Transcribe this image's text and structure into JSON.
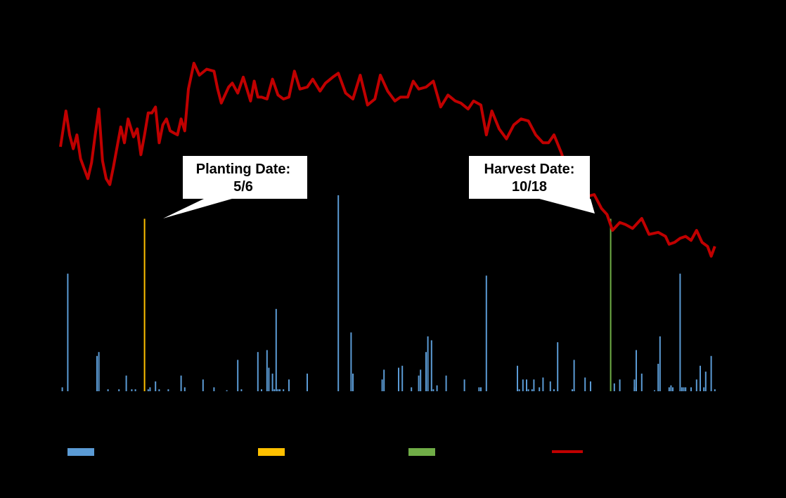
{
  "chart_data": {
    "type": "bar",
    "legend_placement": "bottom",
    "background_color": "#000000",
    "grid": false,
    "x_range": [
      0,
      360
    ],
    "y_range_precip": [
      0,
      100
    ],
    "y_range_temp": [
      0,
      100
    ],
    "series": [
      {
        "role": "precipitation",
        "chart_type": "bar",
        "color": "#5b9bd5",
        "x": [
          1,
          4,
          20,
          21,
          26,
          32,
          36,
          39,
          41,
          48,
          49,
          52,
          54,
          59,
          66,
          68,
          78,
          84,
          91,
          97,
          99,
          108,
          110,
          113,
          114,
          116,
          117,
          118,
          119,
          120,
          122,
          125,
          135,
          152,
          159,
          160,
          176,
          177,
          185,
          187,
          192,
          196,
          197,
          200,
          201,
          203,
          204,
          206,
          211,
          221,
          229,
          230,
          233,
          250,
          251,
          253,
          255,
          256,
          258,
          259,
          262,
          264,
          268,
          270,
          272,
          280,
          281,
          287,
          290,
          303,
          306,
          314,
          314,
          315,
          318,
          325,
          327,
          328,
          333,
          334,
          335,
          339,
          340,
          341,
          342,
          345,
          348,
          350,
          352,
          353,
          356,
          358
        ],
        "values": [
          2,
          60,
          18,
          20,
          1,
          1,
          8,
          1,
          1,
          1,
          2,
          5,
          1,
          1,
          8,
          2,
          6,
          2,
          0.5,
          16,
          1,
          20,
          1,
          21,
          12,
          9,
          1,
          42,
          1,
          1,
          1,
          6,
          9,
          100,
          30,
          9,
          6,
          11,
          12,
          13,
          2,
          8,
          11,
          20,
          28,
          26,
          1,
          3,
          8,
          6,
          2,
          2,
          59,
          13,
          1,
          6,
          6,
          1,
          1,
          6,
          2,
          7,
          5,
          1,
          25,
          1,
          16,
          7,
          5,
          4,
          6,
          2,
          6,
          21,
          9,
          0.5,
          14,
          28,
          2,
          3,
          2,
          60,
          2,
          2,
          2,
          2,
          6,
          13,
          2,
          10,
          18,
          1
        ]
      },
      {
        "role": "planting_date",
        "chart_type": "bar",
        "color": "#ffc000",
        "x": [
          46
        ],
        "values": [
          88
        ]
      },
      {
        "role": "harvest_date",
        "chart_type": "bar",
        "color": "#70ad47",
        "x": [
          301
        ],
        "values": [
          88
        ]
      },
      {
        "role": "temperature",
        "chart_type": "line",
        "color": "#c00000",
        "x": [
          0,
          3,
          5,
          7,
          9,
          11,
          13,
          15,
          17,
          19,
          21,
          23,
          25,
          27,
          29,
          31,
          33,
          35,
          37,
          40,
          42,
          44,
          46,
          48,
          50,
          52,
          54,
          56,
          58,
          60,
          62,
          64,
          66,
          68,
          70,
          73,
          76,
          80,
          84,
          86,
          88,
          92,
          94,
          97,
          100,
          104,
          106,
          108,
          110,
          113,
          116,
          119,
          122,
          125,
          128,
          131,
          135,
          138,
          142,
          145,
          149,
          152,
          156,
          160,
          164,
          168,
          172,
          175,
          179,
          183,
          186,
          190,
          193,
          196,
          200,
          204,
          208,
          212,
          216,
          219,
          223,
          226,
          230,
          233,
          236,
          240,
          244,
          248,
          252,
          256,
          260,
          264,
          267,
          270,
          274,
          278,
          281,
          284,
          288,
          292,
          296,
          299,
          302,
          306,
          309,
          313,
          318,
          322,
          327,
          331,
          333,
          336,
          339,
          342,
          345,
          348,
          351,
          354,
          356,
          358
        ],
        "values": [
          78,
          96,
          84,
          77,
          84,
          72,
          67,
          62,
          70,
          84,
          97,
          71,
          62,
          59,
          68,
          78,
          88,
          80,
          92,
          83,
          87,
          74,
          84,
          95,
          95,
          98,
          80,
          89,
          92,
          86,
          85,
          84,
          92,
          86,
          107,
          120,
          114,
          117,
          116,
          107,
          100,
          108,
          110,
          105,
          113,
          101,
          111,
          103,
          103,
          102,
          112,
          104,
          102,
          103,
          116,
          107,
          108,
          112,
          106,
          110,
          113,
          115,
          105,
          102,
          114,
          99,
          102,
          114,
          106,
          101,
          103,
          103,
          111,
          107,
          108,
          111,
          98,
          104,
          101,
          100,
          97,
          101,
          99,
          84,
          96,
          87,
          82,
          89,
          92,
          91,
          84,
          80,
          80,
          84,
          75,
          64,
          61,
          58,
          53,
          54,
          47,
          44,
          36,
          40,
          39,
          37,
          42,
          34,
          35,
          33,
          29,
          30,
          32,
          33,
          31,
          36,
          30,
          28,
          23,
          28
        ]
      }
    ],
    "annotations": [
      {
        "lines": [
          "Planting Date:",
          "5/6"
        ],
        "x": 46
      },
      {
        "lines": [
          "Harvest Date:",
          "10/18"
        ],
        "x": 301
      }
    ]
  }
}
